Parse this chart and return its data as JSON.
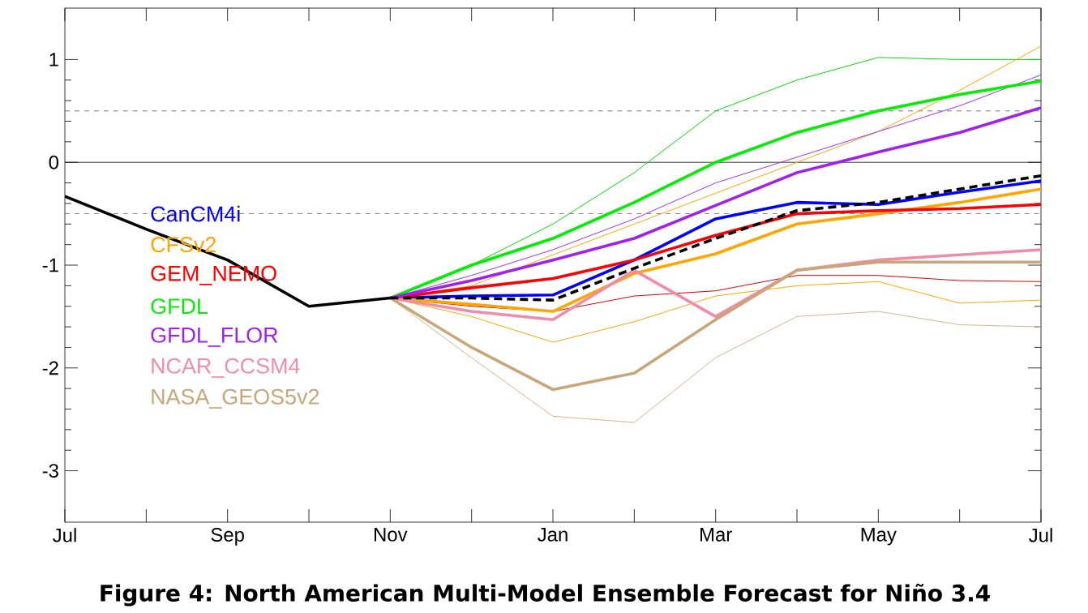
{
  "chart_data": {
    "type": "line",
    "title": "Figure 4: North American Multi-Model Ensemble Forecast for Niño 3.4",
    "categories": [
      "Jul",
      null,
      "Sep",
      null,
      "Nov",
      null,
      "Jan",
      null,
      "Mar",
      null,
      "May",
      null,
      "Jul"
    ],
    "ylim": [
      -3.5,
      1.5
    ],
    "yticks": [
      -3,
      -2,
      -1,
      0,
      1
    ],
    "ref_lines": [
      {
        "axis": "y",
        "value": 0,
        "color": "#000000",
        "line_style": "solid"
      },
      {
        "axis": "y",
        "value": 0.5,
        "color": "#555555",
        "line_style": "dashed"
      },
      {
        "axis": "y",
        "value": -0.5,
        "color": "#555555",
        "line_style": "dashed"
      }
    ],
    "legend": "left",
    "grid": false,
    "marker": "none",
    "series": [
      {
        "color": "#00e000",
        "values": [
          null,
          null,
          null,
          null,
          -1.32,
          -1.0,
          -0.6,
          -0.1,
          0.5,
          0.8,
          1.02,
          1.0,
          1.0
        ]
      },
      {
        "color": "#ffa500",
        "values": [
          null,
          null,
          null,
          null,
          -1.32,
          -1.2,
          -0.9,
          -0.6,
          -0.3,
          0.0,
          0.3,
          0.7,
          1.13
        ]
      },
      {
        "color": "#ffa500",
        "values": [
          null,
          null,
          null,
          null,
          -1.32,
          -1.5,
          -1.75,
          -1.55,
          -1.3,
          -1.2,
          -1.16,
          -1.37,
          -1.34
        ]
      },
      {
        "color": "#9b30ff",
        "values": [
          null,
          null,
          null,
          null,
          -1.32,
          -1.1,
          -0.85,
          -0.55,
          -0.2,
          0.05,
          0.3,
          0.55,
          0.85
        ]
      },
      {
        "color": "#e00000",
        "values": [
          null,
          null,
          null,
          null,
          -1.32,
          -1.4,
          -1.45,
          -1.3,
          -1.25,
          -1.1,
          -1.1,
          -1.15,
          -1.16
        ]
      },
      {
        "color": "#d2b48c",
        "values": [
          null,
          null,
          null,
          null,
          -1.32,
          -1.9,
          -2.47,
          -2.53,
          -1.9,
          -1.5,
          -1.45,
          -1.58,
          -1.6
        ]
      },
      {
        "name": "CanCM4i",
        "color": "#0000ff",
        "values": [
          null,
          null,
          null,
          null,
          -1.32,
          -1.3,
          -1.29,
          -0.95,
          -0.55,
          -0.39,
          -0.41,
          -0.29,
          -0.18
        ]
      },
      {
        "name": "CFSv2",
        "color": "#ffa500",
        "values": [
          null,
          null,
          null,
          null,
          -1.32,
          -1.38,
          -1.45,
          -1.08,
          -0.89,
          -0.6,
          -0.5,
          -0.39,
          -0.26
        ]
      },
      {
        "name": "GEM_NEMO",
        "color": "#ff0000",
        "values": [
          null,
          null,
          null,
          null,
          -1.32,
          -1.22,
          -1.13,
          -0.95,
          -0.71,
          -0.5,
          -0.47,
          -0.45,
          -0.41
        ]
      },
      {
        "name": "GFDL",
        "color": "#00ee00",
        "values": [
          null,
          null,
          null,
          null,
          -1.32,
          -1.0,
          -0.74,
          -0.39,
          0.0,
          0.29,
          0.5,
          0.66,
          0.79
        ]
      },
      {
        "name": "GFDL_FLOR",
        "color": "#a020f0",
        "values": [
          null,
          null,
          null,
          null,
          -1.32,
          -1.15,
          -0.95,
          -0.74,
          -0.42,
          -0.1,
          0.1,
          0.29,
          0.53
        ]
      },
      {
        "name": "NCAR_CCSM4",
        "color": "#f08ca8",
        "values": [
          null,
          null,
          null,
          null,
          -1.32,
          -1.45,
          -1.53,
          -1.05,
          -1.5,
          -1.05,
          -0.95,
          -0.9,
          -0.85
        ]
      },
      {
        "name": "NASA_GEOS5v2",
        "color": "#c8a678",
        "values": [
          null,
          null,
          null,
          null,
          -1.32,
          -1.8,
          -2.21,
          -2.05,
          -1.53,
          -1.05,
          -0.97,
          -0.97,
          -0.97
        ]
      },
      {
        "color": "#000000",
        "line_style": "dashed",
        "values": [
          null,
          null,
          null,
          null,
          -1.32,
          -1.32,
          -1.34,
          -1.03,
          -0.74,
          -0.47,
          -0.39,
          -0.26,
          -0.13
        ]
      },
      {
        "color": "#000000",
        "line_style": "solid",
        "values": [
          -0.33,
          -0.65,
          -0.95,
          -1.4,
          -1.32,
          null,
          null,
          null,
          null,
          null,
          null,
          null,
          null
        ]
      }
    ]
  }
}
